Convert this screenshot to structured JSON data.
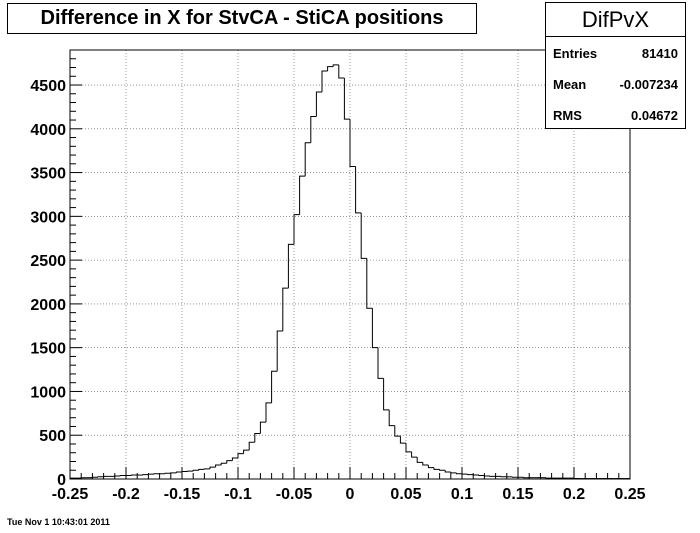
{
  "page": {
    "title": "Difference in X for StvCA - StiCA positions",
    "datestamp": "Tue Nov  1 10:43:01 2011"
  },
  "stats": {
    "name": "DifPvX",
    "rows": [
      {
        "label": "Entries",
        "value": "81410"
      },
      {
        "label": "Mean",
        "value": "-0.007234"
      },
      {
        "label": "RMS",
        "value": "0.04672"
      }
    ]
  },
  "chart_data": {
    "type": "histogram",
    "title": "Difference in X for StvCA - StiCA positions",
    "xlabel": "",
    "ylabel": "",
    "xlim": [
      -0.25,
      0.25
    ],
    "ylim": [
      0,
      4900
    ],
    "xticks": [
      "-0.25",
      "-0.2",
      "-0.15",
      "-0.1",
      "-0.05",
      "0",
      "0.05",
      "0.1",
      "0.15",
      "0.2",
      "0.25"
    ],
    "yticks": [
      "0",
      "500",
      "1000",
      "1500",
      "2000",
      "2500",
      "3000",
      "3500",
      "4000",
      "4500"
    ],
    "grid": true,
    "bin_width": 0.005,
    "bin_start": -0.25,
    "values": [
      10,
      10,
      15,
      15,
      20,
      25,
      30,
      30,
      35,
      40,
      40,
      45,
      45,
      50,
      55,
      60,
      60,
      65,
      70,
      80,
      85,
      90,
      100,
      110,
      115,
      135,
      160,
      180,
      210,
      240,
      290,
      330,
      420,
      520,
      650,
      870,
      1230,
      1690,
      2180,
      2680,
      3020,
      3460,
      3840,
      4140,
      4420,
      4660,
      4710,
      4730,
      4580,
      4110,
      3570,
      3040,
      2520,
      1950,
      1500,
      1150,
      790,
      610,
      490,
      410,
      310,
      250,
      190,
      160,
      130,
      110,
      100,
      80,
      70,
      60,
      55,
      50,
      45,
      40,
      35,
      30,
      30,
      25,
      25,
      20,
      20,
      15,
      15,
      15,
      15,
      10,
      10,
      10,
      10,
      10,
      5,
      5,
      5,
      5,
      5,
      5,
      5,
      5,
      5,
      5
    ]
  }
}
